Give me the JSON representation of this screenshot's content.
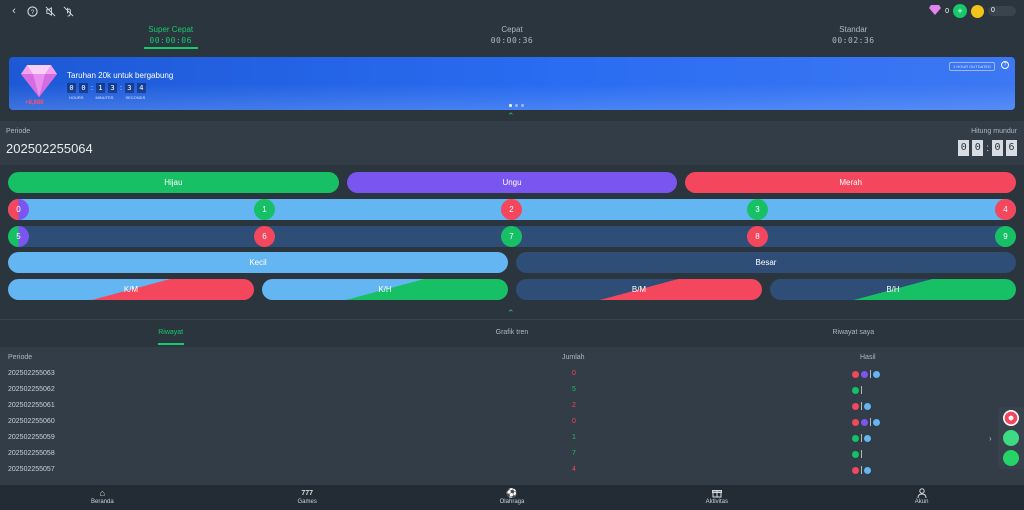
{
  "topbar": {
    "icons": [
      "back-icon",
      "help-icon",
      "sound-muted-icon",
      "no-touch-icon"
    ],
    "diamond_count": "0",
    "coin_count": "0",
    "colors": {
      "add": "#17c96b",
      "coin": "#f2c318"
    }
  },
  "speeds": [
    {
      "label": "Super Cepat",
      "time": "00:00:06",
      "active": true
    },
    {
      "label": "Cepat",
      "time": "00:00:36",
      "active": false
    },
    {
      "label": "Standar",
      "time": "00:02:36",
      "active": false
    }
  ],
  "banner": {
    "title": "Taruhan 20k untuk bergabung",
    "digits": [
      "0",
      "0",
      "1",
      "3",
      "3",
      "4"
    ],
    "unit_labels": [
      "HOURS",
      "MINUTES",
      "SECONDS"
    ],
    "prize": "+8,888",
    "badge": "1 HOUR OUTDATED",
    "slides": 3,
    "active_slide": 0
  },
  "period": {
    "label": "Periode",
    "number": "202502255064",
    "countdown_label": "Hitung mundur",
    "countdown": [
      "0",
      "0",
      "0",
      "6"
    ]
  },
  "colors": [
    {
      "label": "Hijau",
      "color": "#17c064"
    },
    {
      "label": "Ungu",
      "color": "#7b55f0"
    },
    {
      "label": "Merah",
      "color": "#f4475d"
    }
  ],
  "numbers": {
    "row1": [
      "0",
      "1",
      "2",
      "3",
      "4"
    ],
    "row2": [
      "5",
      "6",
      "7",
      "8",
      "9"
    ]
  },
  "sizes": [
    {
      "label": "Kecil",
      "color": "#63b6f2"
    },
    {
      "label": "Besar",
      "color": "#2e4d77"
    }
  ],
  "combos": [
    "K/M",
    "K/H",
    "B/M",
    "B/H"
  ],
  "history_tabs": [
    {
      "label": "Riwayat",
      "active": true
    },
    {
      "label": "Grafik tren",
      "active": false
    },
    {
      "label": "Riwayat saya",
      "active": false
    }
  ],
  "table": {
    "headers": [
      "Periode",
      "Jumlah",
      "Hasil"
    ],
    "rows": [
      {
        "periode": "202502255063",
        "jumlah": "0",
        "dots": [
          "#f4475d",
          "#7b55f0",
          "#63b6f2"
        ]
      },
      {
        "periode": "202502255062",
        "jumlah": "5",
        "dots": [
          "#17c064"
        ]
      },
      {
        "periode": "202502255061",
        "jumlah": "2",
        "dots": [
          "#f4475d",
          "#63b6f2"
        ]
      },
      {
        "periode": "202502255060",
        "jumlah": "0",
        "dots": [
          "#f4475d",
          "#7b55f0",
          "#63b6f2"
        ]
      },
      {
        "periode": "202502255059",
        "jumlah": "1",
        "dots": [
          "#17c064",
          "#63b6f2"
        ]
      },
      {
        "periode": "202502255058",
        "jumlah": "7",
        "dots": [
          "#17c064"
        ]
      },
      {
        "periode": "202502255057",
        "jumlah": "4",
        "dots": [
          "#f4475d",
          "#63b6f2"
        ]
      }
    ]
  },
  "nav": [
    {
      "label": "Beranda",
      "icon": "home-icon"
    },
    {
      "label": "Games",
      "icon": "slot-777-icon"
    },
    {
      "label": "Olahraga",
      "icon": "soccer-ball-icon"
    },
    {
      "label": "Aktivitas",
      "icon": "gift-icon"
    },
    {
      "label": "Akun",
      "icon": "user-icon"
    }
  ]
}
